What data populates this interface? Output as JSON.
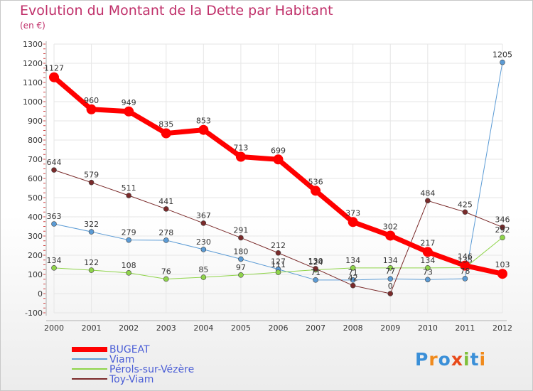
{
  "title": "Evolution du Montant de la Dette par Habitant",
  "subtitle": "(en €)",
  "logo": {
    "text": "Proxiti",
    "colors": [
      "#3a8fd8",
      "#f08a1c",
      "#3a8fd8",
      "#e84a1a",
      "#7fbf3a",
      "#3a8fd8",
      "#f08a1c"
    ]
  },
  "chart_data": {
    "type": "line",
    "title": "Evolution du Montant de la Dette par Habitant",
    "subtitle": "(en €)",
    "xlabel": "",
    "ylabel": "",
    "x": [
      "2000",
      "2001",
      "2002",
      "2003",
      "2004",
      "2005",
      "2006",
      "2007",
      "2008",
      "2009",
      "2010",
      "2011",
      "2012"
    ],
    "ylim": [
      -100,
      1300
    ],
    "yticks": [
      -100,
      0,
      100,
      200,
      300,
      400,
      500,
      600,
      700,
      800,
      900,
      1000,
      1100,
      1200,
      1300
    ],
    "grid": true,
    "legend_position": "bottom-left",
    "series": [
      {
        "name": "BUGEAT",
        "color": "#ff0000",
        "width": 7,
        "marker": 7,
        "values": [
          1127,
          960,
          949,
          835,
          853,
          713,
          699,
          536,
          373,
          302,
          217,
          146,
          103
        ],
        "labels": [
          "1127",
          "960",
          "949",
          "835",
          "853",
          "713",
          "699",
          "536",
          "373",
          "302",
          "217",
          "146",
          "103"
        ]
      },
      {
        "name": "Viam",
        "color": "#5b9bd5",
        "width": 1,
        "marker": 3.5,
        "values": [
          363,
          322,
          279,
          278,
          230,
          180,
          127,
          71,
          71,
          77,
          73,
          78,
          1205
        ],
        "labels": [
          "363",
          "322",
          "279",
          "278",
          "230",
          "180",
          "127",
          "71",
          "71",
          "77",
          "73",
          "78",
          "1205"
        ]
      },
      {
        "name": "Pérols-sur-Vézère",
        "color": "#8fd44a",
        "width": 1,
        "marker": 3.5,
        "values": [
          134,
          122,
          108,
          76,
          85,
          97,
          111,
          124,
          134,
          134,
          134,
          135,
          292
        ],
        "labels": [
          "134",
          "122",
          "108",
          "76",
          "85",
          "97",
          "111",
          "124",
          "134",
          "134",
          "134",
          "135",
          "292"
        ]
      },
      {
        "name": "Toy-Viam",
        "color": "#7a2a2a",
        "width": 1,
        "marker": 3.5,
        "values": [
          644,
          579,
          511,
          441,
          367,
          291,
          212,
          130,
          42,
          0,
          484,
          425,
          346
        ],
        "labels": [
          "644",
          "579",
          "511",
          "441",
          "367",
          "291",
          "212",
          "130",
          "42",
          "0",
          "484",
          "425",
          "346"
        ]
      }
    ]
  }
}
